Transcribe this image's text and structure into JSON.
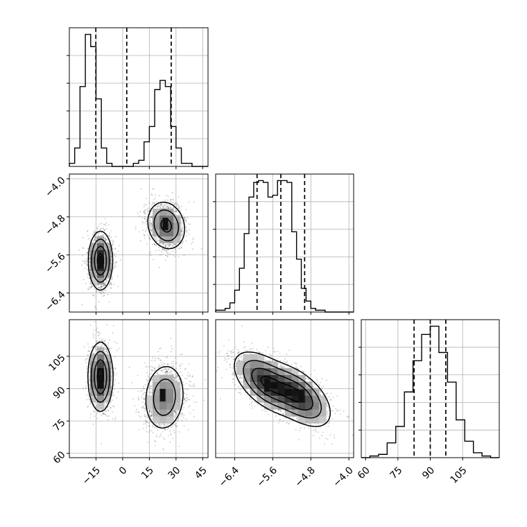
{
  "chart_data": {
    "type": "corner",
    "title": "",
    "grid": true,
    "parameters": [
      {
        "index": 0,
        "range": [
          -30,
          48
        ],
        "ticks": [
          -15,
          0,
          15,
          30,
          45
        ],
        "tick_labels": [
          "−15",
          "0",
          "15",
          "30",
          "45"
        ],
        "quantiles": [
          -15.1,
          2.3,
          27.3
        ],
        "histogram": {
          "bin_edges": [
            -30,
            -27,
            -24,
            -21,
            -18,
            -15,
            -12,
            -9,
            -6,
            -3,
            0,
            3,
            6,
            9,
            12,
            15,
            18,
            21,
            24,
            27,
            30,
            33,
            36,
            39,
            42,
            45,
            48
          ],
          "counts": [
            1,
            6,
            26,
            43,
            39,
            22,
            6,
            1,
            0,
            0,
            0,
            0,
            1,
            2,
            8,
            13,
            25,
            28,
            26,
            13,
            6,
            1,
            1,
            0,
            0,
            0
          ]
        }
      },
      {
        "index": 1,
        "range": [
          -6.8,
          -3.9
        ],
        "ticks": [
          -6.4,
          -5.6,
          -4.8,
          -4.0
        ],
        "tick_labels": [
          "−6.4",
          "−5.6",
          "−4.8",
          "−4.0"
        ],
        "quantiles": [
          -5.93,
          -5.43,
          -4.93
        ],
        "histogram": {
          "bin_edges": [
            -6.8,
            -6.7,
            -6.6,
            -6.5,
            -6.4,
            -6.3,
            -6.2,
            -6.1,
            -6.0,
            -5.9,
            -5.8,
            -5.7,
            -5.6,
            -5.5,
            -5.4,
            -5.3,
            -5.2,
            -5.1,
            -5.0,
            -4.9,
            -4.8,
            -4.7,
            -4.6,
            -4.5,
            -4.4,
            -4.3,
            -4.2,
            -4.1,
            -4.0,
            -3.9
          ],
          "counts": [
            1,
            1,
            2,
            5,
            12,
            24,
            43,
            63,
            71,
            72,
            71,
            63,
            64,
            72,
            72,
            71,
            44,
            29,
            13,
            6,
            2,
            1,
            1,
            0,
            0,
            0,
            0,
            0,
            0
          ]
        }
      },
      {
        "index": 2,
        "range": [
          58,
          122
        ],
        "ticks": [
          60,
          75,
          90,
          105
        ],
        "tick_labels": [
          "60",
          "75",
          "90",
          "105"
        ],
        "quantiles": [
          82.5,
          90.0,
          97.2
        ],
        "histogram": {
          "bin_edges": [
            58,
            62,
            66,
            70,
            74,
            78,
            82,
            86,
            90,
            94,
            98,
            102,
            106,
            110,
            114,
            118,
            122
          ],
          "counts": [
            0,
            1,
            2,
            9,
            19,
            40,
            59,
            75,
            80,
            64,
            46,
            23,
            10,
            3,
            1,
            0
          ]
        }
      }
    ],
    "pairs": [
      {
        "x_param": 0,
        "y_param": 1,
        "modes": [
          {
            "x": -12.5,
            "y": -5.72,
            "sx": 3.3,
            "sy": 0.3,
            "rho": 0.0,
            "weight": 0.5
          },
          {
            "x": 24.5,
            "y": -4.98,
            "sx": 5.5,
            "sy": 0.26,
            "rho": -0.15,
            "weight": 0.5
          }
        ],
        "peaks": [
          {
            "x": -12.5,
            "y": -5.75
          },
          {
            "x": 24.0,
            "y": -4.95
          }
        ]
      },
      {
        "x_param": 0,
        "y_param": 2,
        "modes": [
          {
            "x": -12.5,
            "y": 95.5,
            "sx": 3.4,
            "sy": 7.8,
            "rho": 0.0,
            "weight": 0.5
          },
          {
            "x": 23.5,
            "y": 86.0,
            "sx": 6.0,
            "sy": 8.2,
            "rho": 0.1,
            "weight": 0.5
          }
        ],
        "peaks": [
          {
            "x": -12.5,
            "y": 93.0
          },
          {
            "x": 22.5,
            "y": 87.0
          }
        ]
      },
      {
        "x_param": 1,
        "y_param": 2,
        "modes": [
          {
            "x": -5.75,
            "y": 93.0,
            "sx": 0.33,
            "sy": 7.0,
            "rho": -0.55,
            "weight": 0.5
          },
          {
            "x": -5.05,
            "y": 86.5,
            "sx": 0.33,
            "sy": 7.0,
            "rho": -0.55,
            "weight": 0.5
          }
        ],
        "peaks": [
          {
            "x": -5.72,
            "y": 91.5
          },
          {
            "x": -5.0,
            "y": 86.5
          }
        ]
      }
    ]
  }
}
